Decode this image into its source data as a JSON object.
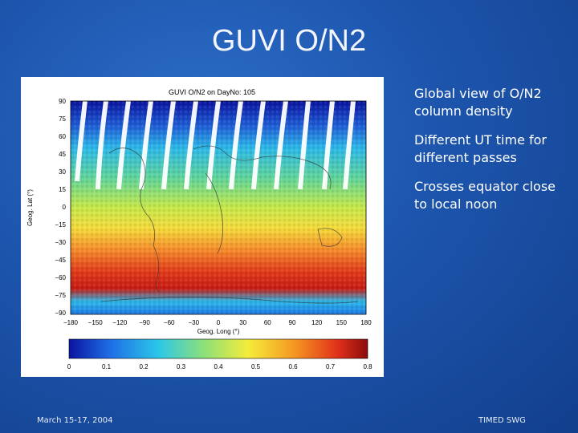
{
  "slide": {
    "title": "GUVI O/N2",
    "bullets": [
      "Global view of O/N2 column density",
      "Different UT time for different passes",
      "Crosses equator close to local noon"
    ],
    "footer_left": "March 15-17, 2004",
    "footer_right": "TIMED SWG"
  },
  "figure": {
    "title": "GUVI O/N2 on DayNo: 105",
    "xlabel": "Geog. Long (°)",
    "ylabel": "Geog. Lat (°)",
    "x_ticks": [
      "−180",
      "−150",
      "−120",
      "−90",
      "−60",
      "−30",
      "0",
      "30",
      "60",
      "90",
      "120",
      "150",
      "180"
    ],
    "y_ticks": [
      "90",
      "75",
      "60",
      "45",
      "30",
      "15",
      "0",
      "−15",
      "−30",
      "−45",
      "−60",
      "−75",
      "−90"
    ],
    "colorbar_ticks": [
      "0",
      "0.1",
      "0.2",
      "0.3",
      "0.4",
      "0.5",
      "0.6",
      "0.7",
      "0.8"
    ],
    "colors": {
      "scale": [
        "#0a14a0",
        "#1f6fe6",
        "#2cc7e8",
        "#8be07a",
        "#f5ec3a",
        "#f59a22",
        "#e0301a",
        "#8c0c0c"
      ]
    }
  }
}
